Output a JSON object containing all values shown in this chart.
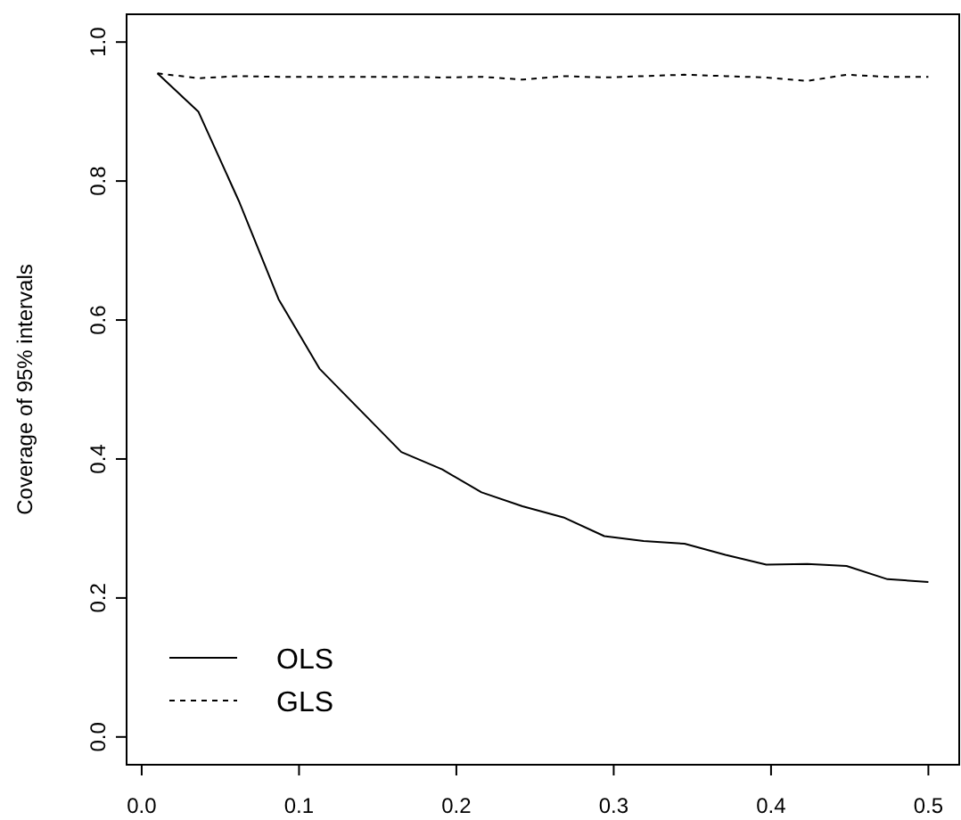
{
  "chart_data": {
    "type": "line",
    "ylabel": "Coverage of 95% intervals",
    "x": [
      0.01,
      0.036,
      0.062,
      0.087,
      0.113,
      0.139,
      0.165,
      0.191,
      0.216,
      0.242,
      0.268,
      0.294,
      0.319,
      0.345,
      0.371,
      0.397,
      0.423,
      0.448,
      0.474,
      0.5
    ],
    "series": [
      {
        "name": "OLS",
        "color": "#000000",
        "line_style": "solid",
        "values": [
          0.955,
          0.9,
          0.77,
          0.63,
          0.53,
          0.47,
          0.41,
          0.385,
          0.352,
          0.332,
          0.316,
          0.289,
          0.282,
          0.278,
          0.262,
          0.248,
          0.249,
          0.246,
          0.227,
          0.223
        ]
      },
      {
        "name": "GLS",
        "color": "#000000",
        "line_style": "dashed",
        "values": [
          0.955,
          0.948,
          0.951,
          0.95,
          0.95,
          0.95,
          0.95,
          0.949,
          0.95,
          0.946,
          0.951,
          0.949,
          0.951,
          0.953,
          0.951,
          0.949,
          0.944,
          0.953,
          0.95,
          0.95
        ]
      }
    ],
    "xlim": [
      -0.0096,
      0.5196
    ],
    "ylim": [
      -0.04,
      1.04
    ],
    "xticks": [
      {
        "value": 0,
        "label": "0.0"
      },
      {
        "value": 0.1,
        "label": "0.1"
      },
      {
        "value": 0.2,
        "label": "0.2"
      },
      {
        "value": 0.3,
        "label": "0.3"
      },
      {
        "value": 0.4,
        "label": "0.4"
      },
      {
        "value": 0.5,
        "label": "0.5"
      }
    ],
    "yticks": [
      {
        "value": 0,
        "label": "0.0"
      },
      {
        "value": 0.2,
        "label": "0.2"
      },
      {
        "value": 0.4,
        "label": "0.4"
      },
      {
        "value": 0.6,
        "label": "0.6"
      },
      {
        "value": 0.8,
        "label": "0.8"
      },
      {
        "value": 1,
        "label": "1.0"
      }
    ],
    "legend": "bottom left",
    "grid": false,
    "marker": "none"
  }
}
